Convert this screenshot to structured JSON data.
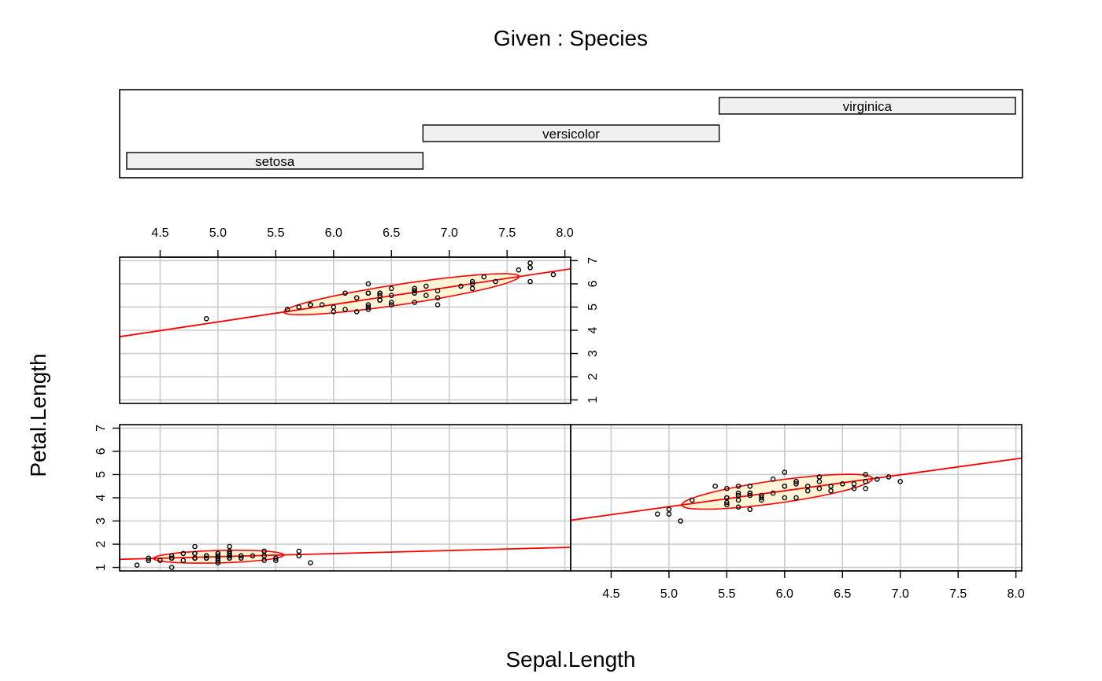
{
  "chart_data": {
    "type": "scatter",
    "title": "Given : Species",
    "xlabel": "Sepal.Length",
    "ylabel": "Petal.Length",
    "xlim": [
      4.15,
      8.05
    ],
    "ylim": [
      0.85,
      7.15
    ],
    "xticks": [
      "4.5",
      "5.0",
      "5.5",
      "6.0",
      "6.5",
      "7.0",
      "7.5",
      "8.0"
    ],
    "yticks": [
      "1",
      "2",
      "3",
      "4",
      "5",
      "6",
      "7"
    ],
    "grid": true,
    "colors": {
      "regression": "#ff0000",
      "ellipse_fill": "#fff5d6",
      "ellipse_stroke": "#ff0000",
      "grid": "#cccccc",
      "strip_fill": "#f0f0f0"
    },
    "given": {
      "levels": [
        "setosa",
        "versicolor",
        "virginica"
      ],
      "panel_order": [
        "setosa",
        "versicolor",
        "virginica"
      ]
    },
    "panels": [
      {
        "name": "setosa",
        "regression": {
          "intercept": 0.803,
          "slope": 0.132
        },
        "ellipse": {
          "cx": 5.006,
          "cy": 1.462,
          "sx": 0.352,
          "sy": 0.174,
          "r": 0.267
        },
        "points": [
          [
            5.1,
            1.4
          ],
          [
            4.9,
            1.4
          ],
          [
            4.7,
            1.3
          ],
          [
            4.6,
            1.5
          ],
          [
            5.0,
            1.4
          ],
          [
            5.4,
            1.7
          ],
          [
            4.6,
            1.4
          ],
          [
            5.0,
            1.5
          ],
          [
            4.4,
            1.4
          ],
          [
            4.9,
            1.5
          ],
          [
            5.4,
            1.5
          ],
          [
            4.8,
            1.6
          ],
          [
            4.8,
            1.4
          ],
          [
            4.3,
            1.1
          ],
          [
            5.8,
            1.2
          ],
          [
            5.7,
            1.5
          ],
          [
            5.4,
            1.3
          ],
          [
            5.1,
            1.4
          ],
          [
            5.7,
            1.7
          ],
          [
            5.1,
            1.5
          ],
          [
            5.4,
            1.7
          ],
          [
            5.1,
            1.5
          ],
          [
            4.6,
            1.0
          ],
          [
            5.1,
            1.7
          ],
          [
            4.8,
            1.9
          ],
          [
            5.0,
            1.6
          ],
          [
            5.0,
            1.6
          ],
          [
            5.2,
            1.5
          ],
          [
            5.2,
            1.4
          ],
          [
            4.7,
            1.6
          ],
          [
            4.8,
            1.6
          ],
          [
            5.4,
            1.5
          ],
          [
            5.2,
            1.5
          ],
          [
            5.5,
            1.4
          ],
          [
            4.9,
            1.5
          ],
          [
            5.0,
            1.2
          ],
          [
            5.5,
            1.3
          ],
          [
            4.9,
            1.4
          ],
          [
            4.4,
            1.3
          ],
          [
            5.1,
            1.5
          ],
          [
            5.0,
            1.3
          ],
          [
            4.5,
            1.3
          ],
          [
            4.4,
            1.3
          ],
          [
            5.0,
            1.6
          ],
          [
            5.1,
            1.9
          ],
          [
            4.8,
            1.4
          ],
          [
            5.1,
            1.6
          ],
          [
            4.6,
            1.4
          ],
          [
            5.3,
            1.5
          ],
          [
            5.0,
            1.4
          ]
        ]
      },
      {
        "name": "versicolor",
        "regression": {
          "intercept": 0.185,
          "slope": 0.686
        },
        "ellipse": {
          "cx": 5.936,
          "cy": 4.26,
          "sx": 0.516,
          "sy": 0.47,
          "r": 0.754
        },
        "points": [
          [
            7.0,
            4.7
          ],
          [
            6.4,
            4.5
          ],
          [
            6.9,
            4.9
          ],
          [
            5.5,
            4.0
          ],
          [
            6.5,
            4.6
          ],
          [
            5.7,
            4.5
          ],
          [
            6.3,
            4.7
          ],
          [
            4.9,
            3.3
          ],
          [
            6.6,
            4.6
          ],
          [
            5.2,
            3.9
          ],
          [
            5.0,
            3.5
          ],
          [
            5.9,
            4.2
          ],
          [
            6.0,
            4.0
          ],
          [
            6.1,
            4.7
          ],
          [
            5.6,
            3.6
          ],
          [
            6.7,
            4.4
          ],
          [
            5.6,
            4.5
          ],
          [
            5.8,
            4.1
          ],
          [
            6.2,
            4.5
          ],
          [
            5.6,
            3.9
          ],
          [
            5.9,
            4.8
          ],
          [
            6.1,
            4.0
          ],
          [
            6.3,
            4.9
          ],
          [
            6.1,
            4.7
          ],
          [
            6.4,
            4.3
          ],
          [
            6.6,
            4.4
          ],
          [
            6.8,
            4.8
          ],
          [
            6.7,
            5.0
          ],
          [
            6.0,
            4.5
          ],
          [
            5.7,
            3.5
          ],
          [
            5.5,
            3.8
          ],
          [
            5.5,
            3.7
          ],
          [
            5.8,
            3.9
          ],
          [
            6.0,
            5.1
          ],
          [
            5.4,
            4.5
          ],
          [
            6.0,
            4.5
          ],
          [
            6.7,
            4.7
          ],
          [
            6.3,
            4.4
          ],
          [
            5.6,
            4.1
          ],
          [
            5.5,
            4.0
          ],
          [
            5.5,
            4.4
          ],
          [
            6.1,
            4.6
          ],
          [
            5.8,
            4.0
          ],
          [
            5.0,
            3.3
          ],
          [
            5.6,
            4.2
          ],
          [
            5.7,
            4.2
          ],
          [
            5.7,
            4.2
          ],
          [
            6.2,
            4.3
          ],
          [
            5.1,
            3.0
          ],
          [
            5.7,
            4.1
          ]
        ]
      },
      {
        "name": "virginica",
        "regression": {
          "intercept": 0.61,
          "slope": 0.75
        },
        "ellipse": {
          "cx": 6.588,
          "cy": 5.552,
          "sx": 0.636,
          "sy": 0.552,
          "r": 0.864
        },
        "points": [
          [
            6.3,
            6.0
          ],
          [
            5.8,
            5.1
          ],
          [
            7.1,
            5.9
          ],
          [
            6.3,
            5.6
          ],
          [
            6.5,
            5.8
          ],
          [
            7.6,
            6.6
          ],
          [
            4.9,
            4.5
          ],
          [
            7.3,
            6.3
          ],
          [
            6.7,
            5.8
          ],
          [
            7.2,
            6.1
          ],
          [
            6.5,
            5.1
          ],
          [
            6.4,
            5.3
          ],
          [
            6.8,
            5.5
          ],
          [
            5.7,
            5.0
          ],
          [
            5.8,
            5.1
          ],
          [
            6.4,
            5.3
          ],
          [
            6.5,
            5.5
          ],
          [
            7.7,
            6.7
          ],
          [
            7.7,
            6.9
          ],
          [
            6.0,
            5.0
          ],
          [
            6.9,
            5.7
          ],
          [
            5.6,
            4.9
          ],
          [
            7.7,
            6.7
          ],
          [
            6.3,
            4.9
          ],
          [
            6.7,
            5.7
          ],
          [
            7.2,
            6.0
          ],
          [
            6.2,
            4.8
          ],
          [
            6.1,
            4.9
          ],
          [
            6.4,
            5.6
          ],
          [
            7.2,
            5.8
          ],
          [
            7.4,
            6.1
          ],
          [
            7.9,
            6.4
          ],
          [
            6.4,
            5.6
          ],
          [
            6.3,
            5.1
          ],
          [
            6.1,
            5.6
          ],
          [
            7.7,
            6.1
          ],
          [
            6.3,
            5.6
          ],
          [
            6.4,
            5.5
          ],
          [
            6.0,
            4.8
          ],
          [
            6.9,
            5.4
          ],
          [
            6.7,
            5.6
          ],
          [
            6.9,
            5.1
          ],
          [
            5.8,
            5.1
          ],
          [
            6.8,
            5.9
          ],
          [
            6.7,
            5.7
          ],
          [
            6.7,
            5.2
          ],
          [
            6.3,
            5.0
          ],
          [
            6.5,
            5.2
          ],
          [
            6.2,
            5.4
          ],
          [
            5.9,
            5.1
          ]
        ]
      }
    ]
  }
}
